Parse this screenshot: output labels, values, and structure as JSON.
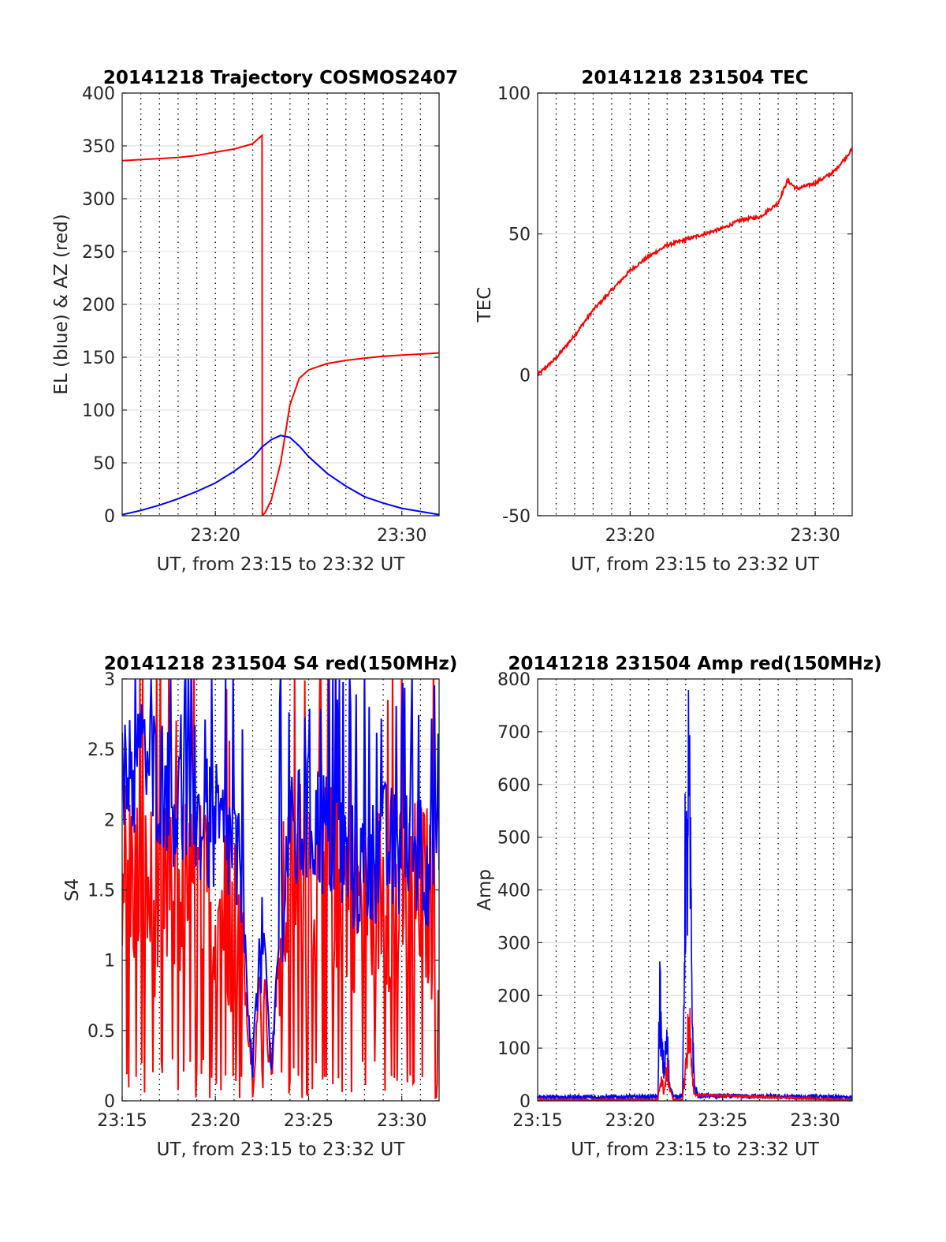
{
  "chart_data": [
    {
      "id": "traj",
      "type": "line",
      "title": "20141218 Trajectory COSMOS2407",
      "xlabel": "UT, from 23:15 to 23:32 UT",
      "ylabel": "EL (blue) & AZ (red)",
      "xlim": [
        "23:15",
        "23:32"
      ],
      "ylim": [
        0,
        400
      ],
      "xticks": [
        {
          "t": "23:20",
          "label": "23:20"
        },
        {
          "t": "23:30",
          "label": "23:30"
        }
      ],
      "yticks": [
        0,
        50,
        100,
        150,
        200,
        250,
        300,
        350,
        400
      ],
      "grid": true,
      "series": [
        {
          "color": "#ff0000",
          "x": [
            "23:15",
            "23:16",
            "23:17",
            "23:18",
            "23:19",
            "23:20",
            "23:21",
            "23:22",
            "23:22:30",
            "23:22:31",
            "23:22:40",
            "23:23",
            "23:23:30",
            "23:24",
            "23:24:30",
            "23:25",
            "23:26",
            "23:27",
            "23:28",
            "23:29",
            "23:30",
            "23:31",
            "23:32"
          ],
          "values": [
            336,
            337,
            338,
            339,
            341,
            344,
            347,
            352,
            360,
            0,
            3,
            15,
            50,
            105,
            130,
            138,
            144,
            147,
            149,
            151,
            152,
            153,
            154
          ]
        },
        {
          "color": "#0000ff",
          "x": [
            "23:15",
            "23:16",
            "23:17",
            "23:18",
            "23:19",
            "23:20",
            "23:21",
            "23:22",
            "23:22:30",
            "23:23",
            "23:23:30",
            "23:24",
            "23:24:30",
            "23:25",
            "23:26",
            "23:27",
            "23:28",
            "23:29",
            "23:30",
            "23:31",
            "23:32"
          ],
          "values": [
            1,
            5,
            10,
            16,
            23,
            31,
            42,
            55,
            65,
            72,
            76,
            74,
            66,
            56,
            40,
            28,
            18,
            12,
            7,
            4,
            1
          ]
        }
      ]
    },
    {
      "id": "tec",
      "type": "line",
      "title": "20141218 231504 TEC",
      "xlabel": "UT, from 23:15 to 23:32 UT",
      "ylabel": "TEC",
      "xlim": [
        "23:15",
        "23:32"
      ],
      "ylim": [
        -50,
        100
      ],
      "xticks": [
        {
          "t": "23:20",
          "label": "23:20"
        },
        {
          "t": "23:30",
          "label": "23:30"
        }
      ],
      "yticks": [
        -50,
        0,
        50,
        100
      ],
      "grid": true,
      "series": [
        {
          "color": "#ff0000",
          "x": [
            "23:15",
            "23:16",
            "23:17",
            "23:18",
            "23:19",
            "23:20",
            "23:21",
            "23:22",
            "23:23",
            "23:24",
            "23:25",
            "23:26",
            "23:27",
            "23:28",
            "23:28:30",
            "23:29",
            "23:30",
            "23:31",
            "23:32"
          ],
          "values": [
            0,
            6,
            14,
            23,
            30,
            37,
            42,
            46,
            48,
            50,
            52,
            55,
            56,
            61,
            69,
            66,
            68,
            72,
            80
          ]
        }
      ]
    },
    {
      "id": "s4",
      "type": "line",
      "title": "20141218 231504 S4 red(150MHz)",
      "xlabel": "UT, from 23:15 to 23:32 UT",
      "ylabel": "S4",
      "xlim": [
        "23:15",
        "23:32"
      ],
      "ylim": [
        0,
        3
      ],
      "xticks": [
        {
          "t": "23:15",
          "label": "23:15"
        },
        {
          "t": "23:20",
          "label": "23:20"
        },
        {
          "t": "23:25",
          "label": "23:25"
        },
        {
          "t": "23:30",
          "label": "23:30"
        }
      ],
      "yticks": [
        0,
        0.5,
        1,
        1.5,
        2,
        2.5,
        3
      ],
      "grid": true,
      "series": [
        {
          "color": "#ff0000",
          "x": [
            "23:15",
            "23:16",
            "23:17",
            "23:18",
            "23:19",
            "23:20",
            "23:21",
            "23:21:30",
            "23:22",
            "23:22:30",
            "23:23",
            "23:23:30",
            "23:24",
            "23:25",
            "23:26",
            "23:27",
            "23:28",
            "23:29",
            "23:30",
            "23:31",
            "23:32"
          ],
          "values": [
            1.7,
            1.5,
            1.4,
            1.5,
            1.5,
            1.4,
            1.3,
            1.0,
            0.2,
            1.0,
            0.2,
            1.2,
            1.6,
            1.7,
            1.6,
            1.5,
            1.4,
            1.5,
            1.4,
            1.5,
            1.3
          ]
        },
        {
          "color": "#0000ff",
          "x": [
            "23:15",
            "23:16",
            "23:17",
            "23:18",
            "23:19",
            "23:20",
            "23:21",
            "23:21:30",
            "23:22",
            "23:22:30",
            "23:23",
            "23:23:30",
            "23:24",
            "23:25",
            "23:26",
            "23:27",
            "23:28",
            "23:29",
            "23:30",
            "23:31",
            "23:32"
          ],
          "values": [
            2.2,
            2.4,
            2.3,
            2.1,
            2.0,
            1.9,
            1.8,
            1.3,
            0.25,
            1.3,
            0.2,
            1.4,
            1.8,
            2.0,
            1.9,
            1.7,
            1.6,
            1.8,
            1.7,
            1.8,
            1.6
          ]
        }
      ]
    },
    {
      "id": "amp",
      "type": "line",
      "title": "20141218 231504 Amp red(150MHz)",
      "xlabel": "UT, from 23:15 to 23:32 UT",
      "ylabel": "Amp",
      "xlim": [
        "23:15",
        "23:32"
      ],
      "ylim": [
        0,
        800
      ],
      "xticks": [
        {
          "t": "23:15",
          "label": "23:15"
        },
        {
          "t": "23:20",
          "label": "23:20"
        },
        {
          "t": "23:25",
          "label": "23:25"
        },
        {
          "t": "23:30",
          "label": "23:30"
        }
      ],
      "yticks": [
        0,
        100,
        200,
        300,
        400,
        500,
        600,
        700,
        800
      ],
      "grid": true,
      "series": [
        {
          "color": "#0000ff",
          "x": [
            "23:15",
            "23:21:30",
            "23:21:36",
            "23:21:42",
            "23:21:50",
            "23:22",
            "23:22:06",
            "23:22:12",
            "23:22:20",
            "23:22:50",
            "23:23",
            "23:23:04",
            "23:23:08",
            "23:23:12",
            "23:23:18",
            "23:23:24",
            "23:23:30",
            "23:23:40",
            "23:32"
          ],
          "values": [
            2,
            3,
            290,
            120,
            80,
            150,
            60,
            20,
            3,
            5,
            670,
            500,
            785,
            700,
            400,
            120,
            30,
            5,
            2
          ]
        },
        {
          "color": "#ff0000",
          "x": [
            "23:15",
            "23:21:30",
            "23:21:40",
            "23:21:50",
            "23:22",
            "23:22:10",
            "23:22:20",
            "23:22:50",
            "23:23:04",
            "23:23:12",
            "23:23:20",
            "23:23:30",
            "23:32"
          ],
          "values": [
            0,
            0,
            60,
            20,
            80,
            20,
            0,
            0,
            120,
            220,
            60,
            10,
            0
          ]
        }
      ]
    }
  ]
}
